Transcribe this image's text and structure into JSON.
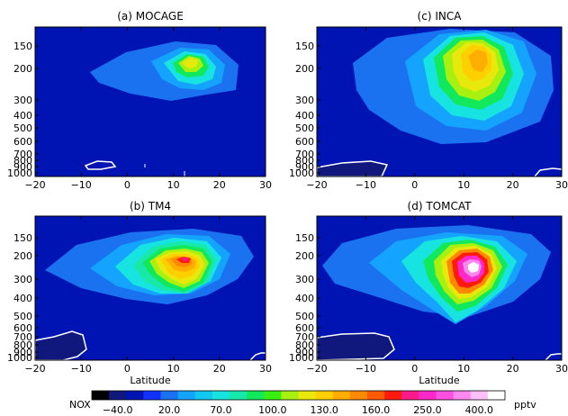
{
  "chart_data": [
    {
      "type": "contour",
      "title": "(a) MOCAGE",
      "xlabel": "",
      "x_ticks": [
        "−20",
        "−10",
        "0",
        "10",
        "20",
        "30"
      ],
      "y_ticks": [
        "150",
        "200",
        "300",
        "400",
        "500",
        "600",
        "700",
        "800",
        "900",
        "1000"
      ],
      "xlim": [
        -20,
        30
      ],
      "ylim_hPa": [
        1000,
        100
      ],
      "plume_center": {
        "lat": 11,
        "p": 190
      },
      "max_level": "130.0"
    },
    {
      "type": "contour",
      "title": "(c) INCA",
      "xlabel": "",
      "x_ticks": [
        "−20",
        "−10",
        "0",
        "10",
        "20",
        "30"
      ],
      "y_ticks": [
        "150",
        "200",
        "300",
        "400",
        "500",
        "600",
        "700",
        "800",
        "900",
        "1000"
      ],
      "xlim": [
        -20,
        30
      ],
      "ylim_hPa": [
        1000,
        100
      ],
      "plume_center": {
        "lat": 14,
        "p": 180
      },
      "max_level": "160.0"
    },
    {
      "type": "contour",
      "title": "(b) TM4",
      "xlabel": "Latitude",
      "x_ticks": [
        "−20",
        "−10",
        "0",
        "10",
        "20",
        "30"
      ],
      "y_ticks": [
        "150",
        "200",
        "300",
        "400",
        "500",
        "600",
        "700",
        "800",
        "900",
        "1000"
      ],
      "xlim": [
        -20,
        30
      ],
      "ylim_hPa": [
        1000,
        100
      ],
      "plume_center": {
        "lat": 11,
        "p": 210
      },
      "max_level": "250.0"
    },
    {
      "type": "contour",
      "title": "(d) TOMCAT",
      "xlabel": "Latitude",
      "x_ticks": [
        "−20",
        "−10",
        "0",
        "10",
        "20",
        "30"
      ],
      "y_ticks": [
        "150",
        "200",
        "300",
        "400",
        "500",
        "600",
        "700",
        "800",
        "900",
        "1000"
      ],
      "xlim": [
        -20,
        30
      ],
      "ylim_hPa": [
        1000,
        100
      ],
      "plume_center": {
        "lat": 15,
        "p": 250
      },
      "max_level": "400.0"
    }
  ],
  "colorbar": {
    "variable": "NOX",
    "unit": "pptv",
    "labels": [
      "−40.0",
      "20.0",
      "70.0",
      "100.0",
      "130.0",
      "160.0",
      "250.0",
      "400.0"
    ],
    "colors": [
      "#000000",
      "#10187e",
      "#0014b4",
      "#1230ff",
      "#1a72f0",
      "#14a4ff",
      "#13c8ef",
      "#17e4e0",
      "#18e8a8",
      "#12e85c",
      "#38f010",
      "#a8f010",
      "#e8e80c",
      "#ffd000",
      "#ffae00",
      "#ff8a00",
      "#ff5a00",
      "#ff1a10",
      "#ff1a88",
      "#ff28c8",
      "#ff50e0",
      "#ff88f0",
      "#ffc0f8",
      "#ffffff"
    ]
  }
}
